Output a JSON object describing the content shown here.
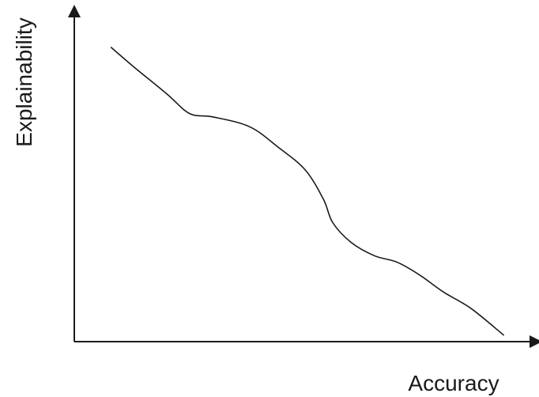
{
  "chart_data": {
    "type": "line",
    "title": "",
    "xlabel": "Accuracy",
    "ylabel": "Explainability",
    "xlim": [
      0,
      1
    ],
    "ylim": [
      0,
      1
    ],
    "grid": false,
    "ticks": false,
    "series": [
      {
        "color": "#1a1a1a",
        "x": [
          0.08,
          0.13,
          0.2,
          0.25,
          0.3,
          0.38,
          0.44,
          0.5,
          0.54,
          0.56,
          0.6,
          0.65,
          0.7,
          0.75,
          0.8,
          0.86,
          0.93
        ],
        "y": [
          0.89,
          0.83,
          0.75,
          0.69,
          0.68,
          0.65,
          0.59,
          0.52,
          0.43,
          0.36,
          0.3,
          0.26,
          0.24,
          0.2,
          0.15,
          0.1,
          0.02
        ]
      }
    ]
  }
}
